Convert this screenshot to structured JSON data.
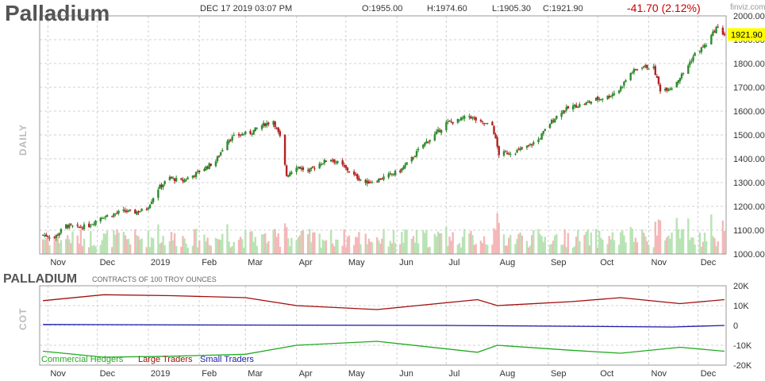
{
  "header": {
    "symbol": "Palladium",
    "datetime": "DEC 17 2019 03:07 PM",
    "open": "O:1955.00",
    "high": "H:1974.60",
    "low": "L:1905.30",
    "close": "C:1921.90",
    "change": "-41.70 (2.12%)",
    "brand": "finviz.com"
  },
  "price_panel": {
    "label": "DAILY",
    "last_price_label": "1921.90"
  },
  "cot_panel": {
    "title": "PALLADIUM",
    "units": "CONTRACTS OF 100 TROY OUNCES",
    "label": "COT",
    "legend": [
      "Commercial Hedgers",
      "Large Traders",
      "Small Traders"
    ]
  },
  "colors": {
    "up": "#2e8b2e",
    "down": "#b22222",
    "vol_up": "#b9e3b4",
    "vol_down": "#f4b8b8",
    "grid": "#d0d0d0",
    "highlight": "#ffff00",
    "commercial": "#22aa22",
    "large": "#a01010",
    "small": "#1a1aaa"
  },
  "chart_data": [
    {
      "type": "candlestick",
      "title": "Palladium",
      "ylim": [
        1000,
        2000
      ],
      "y_ticks": [
        "1000.00",
        "1100.00",
        "1200.00",
        "1300.00",
        "1400.00",
        "1500.00",
        "1600.00",
        "1700.00",
        "1800.00",
        "1900.00",
        "2000.00"
      ],
      "x_tick_labels": [
        "Nov",
        "Dec",
        "2019",
        "Feb",
        "Mar",
        "Apr",
        "May",
        "Jun",
        "Jul",
        "Aug",
        "Sep",
        "Oct",
        "Nov",
        "Dec"
      ],
      "last_close": 1921.9,
      "close_path": [
        {
          "date": "2018-10-29",
          "close": 1080
        },
        {
          "date": "2018-11-05",
          "close": 1070
        },
        {
          "date": "2018-11-12",
          "close": 1120
        },
        {
          "date": "2018-11-19",
          "close": 1110
        },
        {
          "date": "2018-11-26",
          "close": 1120
        },
        {
          "date": "2018-12-03",
          "close": 1155
        },
        {
          "date": "2018-12-10",
          "close": 1165
        },
        {
          "date": "2018-12-17",
          "close": 1180
        },
        {
          "date": "2018-12-24",
          "close": 1175
        },
        {
          "date": "2018-12-31",
          "close": 1190
        },
        {
          "date": "2019-01-07",
          "close": 1275
        },
        {
          "date": "2019-01-14",
          "close": 1320
        },
        {
          "date": "2019-01-21",
          "close": 1305
        },
        {
          "date": "2019-01-28",
          "close": 1330
        },
        {
          "date": "2019-02-04",
          "close": 1360
        },
        {
          "date": "2019-02-11",
          "close": 1390
        },
        {
          "date": "2019-02-18",
          "close": 1480
        },
        {
          "date": "2019-02-25",
          "close": 1500
        },
        {
          "date": "2019-03-04",
          "close": 1510
        },
        {
          "date": "2019-03-11",
          "close": 1540
        },
        {
          "date": "2019-03-18",
          "close": 1560
        },
        {
          "date": "2019-03-22",
          "close": 1490
        },
        {
          "date": "2019-03-26",
          "close": 1330
        },
        {
          "date": "2019-04-01",
          "close": 1370
        },
        {
          "date": "2019-04-08",
          "close": 1345
        },
        {
          "date": "2019-04-15",
          "close": 1380
        },
        {
          "date": "2019-04-22",
          "close": 1400
        },
        {
          "date": "2019-04-29",
          "close": 1370
        },
        {
          "date": "2019-05-06",
          "close": 1330
        },
        {
          "date": "2019-05-13",
          "close": 1300
        },
        {
          "date": "2019-05-20",
          "close": 1310
        },
        {
          "date": "2019-05-27",
          "close": 1330
        },
        {
          "date": "2019-06-03",
          "close": 1350
        },
        {
          "date": "2019-06-10",
          "close": 1400
        },
        {
          "date": "2019-06-17",
          "close": 1460
        },
        {
          "date": "2019-06-24",
          "close": 1500
        },
        {
          "date": "2019-07-01",
          "close": 1550
        },
        {
          "date": "2019-07-08",
          "close": 1560
        },
        {
          "date": "2019-07-15",
          "close": 1580
        },
        {
          "date": "2019-07-22",
          "close": 1550
        },
        {
          "date": "2019-07-29",
          "close": 1540
        },
        {
          "date": "2019-08-02",
          "close": 1420
        },
        {
          "date": "2019-08-12",
          "close": 1430
        },
        {
          "date": "2019-08-19",
          "close": 1450
        },
        {
          "date": "2019-08-26",
          "close": 1480
        },
        {
          "date": "2019-09-02",
          "close": 1550
        },
        {
          "date": "2019-09-09",
          "close": 1600
        },
        {
          "date": "2019-09-16",
          "close": 1620
        },
        {
          "date": "2019-09-23",
          "close": 1630
        },
        {
          "date": "2019-09-30",
          "close": 1650
        },
        {
          "date": "2019-10-07",
          "close": 1660
        },
        {
          "date": "2019-10-14",
          "close": 1690
        },
        {
          "date": "2019-10-21",
          "close": 1760
        },
        {
          "date": "2019-10-28",
          "close": 1790
        },
        {
          "date": "2019-11-04",
          "close": 1780
        },
        {
          "date": "2019-11-08",
          "close": 1690
        },
        {
          "date": "2019-11-15",
          "close": 1700
        },
        {
          "date": "2019-11-22",
          "close": 1760
        },
        {
          "date": "2019-11-29",
          "close": 1840
        },
        {
          "date": "2019-12-06",
          "close": 1880
        },
        {
          "date": "2019-12-12",
          "close": 1950
        },
        {
          "date": "2019-12-17",
          "close": 1921.9
        }
      ]
    },
    {
      "type": "line",
      "title": "PALLADIUM",
      "ylim": [
        -20000,
        20000
      ],
      "y_ticks": [
        "20K",
        "10K",
        "0",
        "-10K",
        "-20K"
      ],
      "x_tick_labels": [
        "Nov",
        "Dec",
        "2019",
        "Feb",
        "Mar",
        "Apr",
        "May",
        "Jun",
        "Jul",
        "Aug",
        "Sep",
        "Oct",
        "Nov",
        "Dec"
      ],
      "series": [
        {
          "name": "Large Traders",
          "values": [
            {
              "date": "2018-10-29",
              "value": 12500
            },
            {
              "date": "2018-12-05",
              "value": 15500
            },
            {
              "date": "2019-01-15",
              "value": 15000
            },
            {
              "date": "2019-03-01",
              "value": 14000
            },
            {
              "date": "2019-04-01",
              "value": 10000
            },
            {
              "date": "2019-05-20",
              "value": 8000
            },
            {
              "date": "2019-07-20",
              "value": 13000
            },
            {
              "date": "2019-08-01",
              "value": 10000
            },
            {
              "date": "2019-09-15",
              "value": 12000
            },
            {
              "date": "2019-10-15",
              "value": 14000
            },
            {
              "date": "2019-11-20",
              "value": 11000
            },
            {
              "date": "2019-12-17",
              "value": 13000
            }
          ]
        },
        {
          "name": "Small Traders",
          "values": [
            {
              "date": "2018-10-29",
              "value": 500
            },
            {
              "date": "2019-03-01",
              "value": 200
            },
            {
              "date": "2019-07-01",
              "value": 0
            },
            {
              "date": "2019-11-15",
              "value": -800
            },
            {
              "date": "2019-12-17",
              "value": 0
            }
          ]
        },
        {
          "name": "Commercial Hedgers",
          "values": [
            {
              "date": "2018-10-29",
              "value": -13000
            },
            {
              "date": "2018-12-05",
              "value": -16000
            },
            {
              "date": "2019-01-15",
              "value": -15500
            },
            {
              "date": "2019-03-01",
              "value": -14500
            },
            {
              "date": "2019-04-01",
              "value": -10000
            },
            {
              "date": "2019-05-20",
              "value": -8000
            },
            {
              "date": "2019-07-20",
              "value": -13500
            },
            {
              "date": "2019-08-01",
              "value": -10000
            },
            {
              "date": "2019-09-15",
              "value": -12500
            },
            {
              "date": "2019-10-15",
              "value": -14000
            },
            {
              "date": "2019-11-20",
              "value": -11000
            },
            {
              "date": "2019-12-17",
              "value": -13000
            }
          ]
        }
      ]
    }
  ]
}
